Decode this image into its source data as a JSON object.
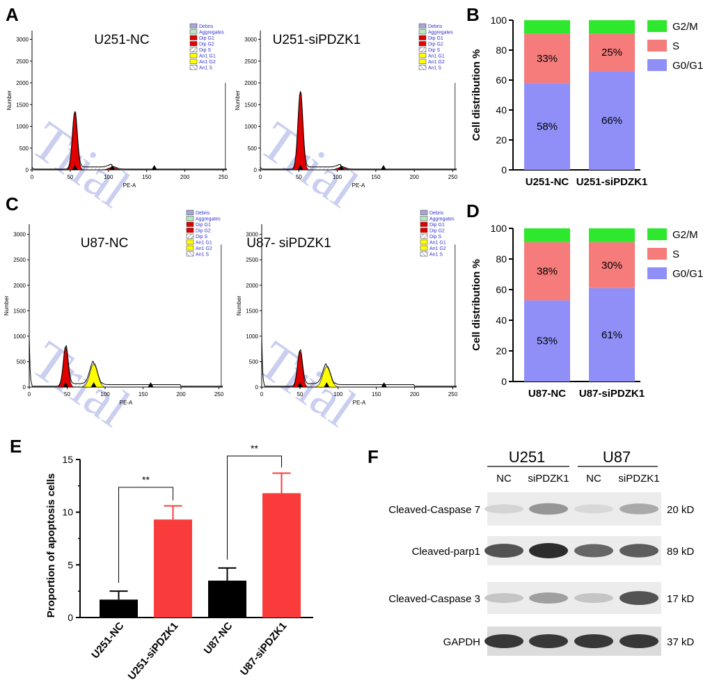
{
  "panels": {
    "A": "A",
    "B": "B",
    "C": "C",
    "D": "D",
    "E": "E",
    "F": "F"
  },
  "histograms": [
    {
      "title": "U251-NC",
      "xlabel": "PE-A",
      "ylabel": "Number",
      "yticks": [
        "0",
        "500",
        "1000",
        "1500",
        "2000",
        "2500",
        "3000"
      ],
      "xticks": [
        "0",
        "50",
        "100",
        "150",
        "200",
        "250"
      ],
      "legend": [
        "Debris",
        "Aggregates",
        "Dip G1",
        "Dip G2",
        "Dip S",
        "An1 G1",
        "An1 G2",
        "An1 S"
      ]
    },
    {
      "title": "U251-siPDZK1",
      "xlabel": "PE-A",
      "ylabel": "Number",
      "yticks": [
        "0",
        "500",
        "1000",
        "1500",
        "2000",
        "2500",
        "3000"
      ],
      "xticks": [
        "0",
        "50",
        "100",
        "150",
        "200",
        "250"
      ],
      "legend": [
        "Debris",
        "Aggregates",
        "Dip G1",
        "Dip G2",
        "Dip S",
        "An1 G1",
        "An1 G2",
        "An1 S"
      ]
    },
    {
      "title": "U87-NC",
      "xlabel": "PE-A",
      "ylabel": "Number",
      "yticks": [
        "0",
        "500",
        "1000",
        "1500",
        "2000",
        "2500",
        "3000"
      ],
      "xticks": [
        "0",
        "50",
        "100",
        "150",
        "200",
        "250"
      ],
      "legend": [
        "Debris",
        "Aggregates",
        "Dip G1",
        "Dip G2",
        "Dip S",
        "An1 G1",
        "An1 G2",
        "An1 S"
      ]
    },
    {
      "title": "U87- siPDZK1",
      "xlabel": "PE-A",
      "ylabel": "Number",
      "yticks": [
        "0",
        "500",
        "1000",
        "1500",
        "2000",
        "2500",
        "3000"
      ],
      "xticks": [
        "0",
        "50",
        "100",
        "150",
        "200",
        "250"
      ],
      "legend": [
        "Debris",
        "Aggregates",
        "Dip G1",
        "Dip G2",
        "Dip S",
        "An1 G1",
        "An1 G2",
        "An1 S"
      ]
    }
  ],
  "watermark": "Trial",
  "chart_data": [
    {
      "id": "B",
      "type": "bar",
      "stacked": true,
      "categories": [
        "U251-NC",
        "U251-siPDZK1"
      ],
      "series": [
        {
          "name": "G0/G1",
          "values": [
            58,
            66
          ],
          "labels": [
            "58%",
            "66%"
          ],
          "color": "#8f8ff7"
        },
        {
          "name": "S",
          "values": [
            33,
            25
          ],
          "labels": [
            "33%",
            "25%"
          ],
          "color": "#f67b7b"
        },
        {
          "name": "G2/M",
          "values": [
            9,
            9
          ],
          "color": "#2ee82e"
        }
      ],
      "ylabel": "Cell distribution %",
      "ylim": [
        0,
        100
      ],
      "yticks": [
        "0",
        "20",
        "40",
        "60",
        "80",
        "100"
      ],
      "legend": "right"
    },
    {
      "id": "D",
      "type": "bar",
      "stacked": true,
      "categories": [
        "U87-NC",
        "U87-siPDZK1"
      ],
      "series": [
        {
          "name": "G0/G1",
          "values": [
            53,
            61
          ],
          "labels": [
            "53%",
            "61%"
          ],
          "color": "#8f8ff7"
        },
        {
          "name": "S",
          "values": [
            38,
            30
          ],
          "labels": [
            "38%",
            "30%"
          ],
          "color": "#f67b7b"
        },
        {
          "name": "G2/M",
          "values": [
            9,
            9
          ],
          "color": "#2ee82e"
        }
      ],
      "ylabel": "Cell distribution %",
      "ylim": [
        0,
        100
      ],
      "yticks": [
        "0",
        "20",
        "40",
        "60",
        "80",
        "100"
      ],
      "legend": "right"
    },
    {
      "id": "E",
      "type": "bar",
      "categories": [
        "U251-NC",
        "U251-siPDZK1",
        "U87-NC",
        "U87-siPDZK1"
      ],
      "values": [
        1.7,
        9.3,
        3.5,
        11.8
      ],
      "errors": [
        0.8,
        1.3,
        1.2,
        1.9
      ],
      "colors": [
        "#000000",
        "#fa3b3b",
        "#000000",
        "#fa3b3b"
      ],
      "ylabel": "Proportion of apoptosis cells",
      "ylim": [
        0,
        15
      ],
      "yticks": [
        "0",
        "5",
        "10",
        "15"
      ],
      "significance": [
        {
          "pair": [
            0,
            1
          ],
          "label": "**"
        },
        {
          "pair": [
            2,
            3
          ],
          "label": "**"
        }
      ]
    }
  ],
  "blot": {
    "groups": [
      "U251",
      "U87"
    ],
    "lanes": [
      "NC",
      "siPDZK1",
      "NC",
      "siPDZK1"
    ],
    "rows": [
      {
        "label": "Cleaved-Caspase 7",
        "size": "20 kD",
        "intensity": [
          0.12,
          0.45,
          0.1,
          0.35
        ]
      },
      {
        "label": "Cleaved-parp1",
        "size": "89 kD",
        "intensity": [
          0.8,
          1.0,
          0.7,
          0.75
        ]
      },
      {
        "label": "Cleaved-Caspase 3",
        "size": "17 kD",
        "intensity": [
          0.2,
          0.4,
          0.2,
          0.8
        ]
      },
      {
        "label": "GAPDH",
        "size": "37 kD",
        "intensity": [
          0.95,
          0.95,
          0.95,
          0.95
        ]
      }
    ]
  }
}
